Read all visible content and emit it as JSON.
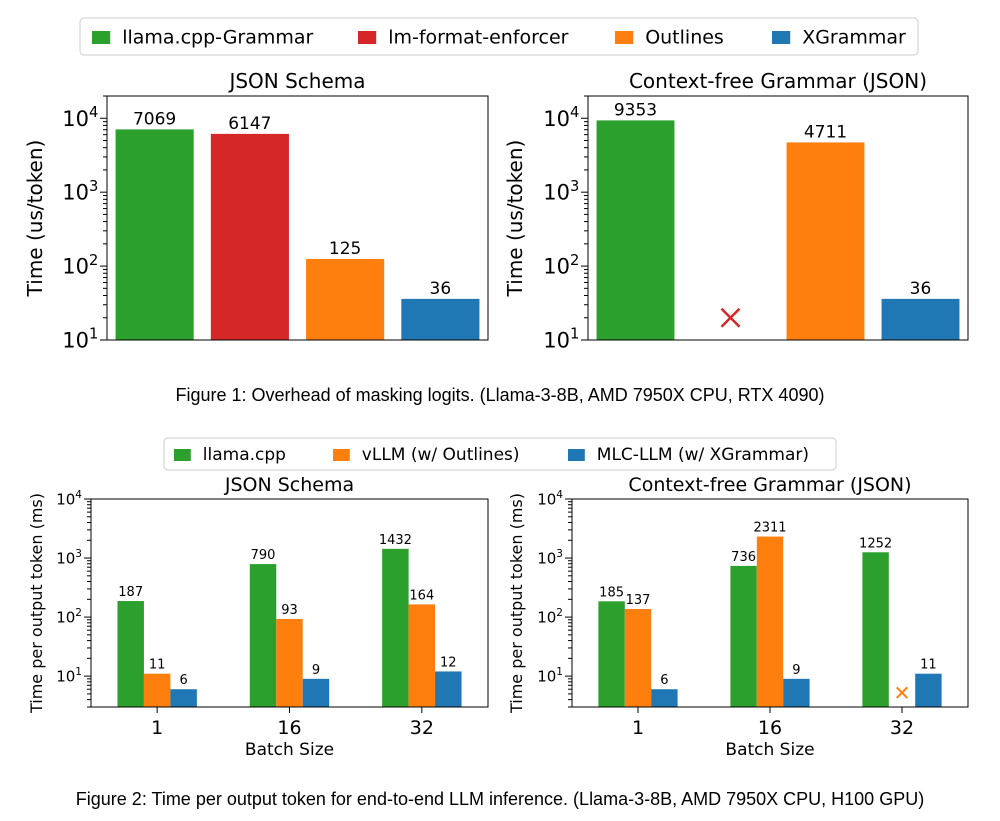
{
  "figure1": {
    "caption": "Figure 1: Overhead of masking logits. (Llama-3-8B, AMD 7950X CPU, RTX 4090)",
    "legend": [
      {
        "name": "llama.cpp-Grammar",
        "color": "#2ca02c"
      },
      {
        "name": "lm-format-enforcer",
        "color": "#d62728"
      },
      {
        "name": "Outlines",
        "color": "#ff7f0e"
      },
      {
        "name": "XGrammar",
        "color": "#1f77b4"
      }
    ]
  },
  "figure2": {
    "caption": "Figure 2: Time per output token for end-to-end LLM inference. (Llama-3-8B, AMD 7950X CPU, H100 GPU)",
    "legend": [
      {
        "name": "llama.cpp",
        "color": "#2ca02c"
      },
      {
        "name": "vLLM (w/ Outlines)",
        "color": "#ff7f0e"
      },
      {
        "name": "MLC-LLM (w/ XGrammar)",
        "color": "#1f77b4"
      }
    ]
  },
  "chart_data": [
    {
      "type": "bar",
      "title": "JSON Schema",
      "xlabel": "",
      "ylabel": "Time (us/token)",
      "yscale": "log",
      "ylim": [
        10,
        20000
      ],
      "yticks": [
        10,
        100,
        1000,
        10000
      ],
      "yticklabels": [
        "10^1",
        "10^2",
        "10^3",
        "10^4"
      ],
      "categories": [
        "llama.cpp-Grammar",
        "lm-format-enforcer",
        "Outlines",
        "XGrammar"
      ],
      "colors": [
        "#2ca02c",
        "#d62728",
        "#ff7f0e",
        "#1f77b4"
      ],
      "values": [
        7069,
        6147,
        125,
        36
      ],
      "labels": [
        "7069",
        "6147",
        "125",
        "36"
      ],
      "unsupported": [],
      "legend": "top (shared)"
    },
    {
      "type": "bar",
      "title": "Context-free Grammar (JSON)",
      "xlabel": "",
      "ylabel": "Time (us/token)",
      "yscale": "log",
      "ylim": [
        10,
        20000
      ],
      "yticks": [
        10,
        100,
        1000,
        10000
      ],
      "yticklabels": [
        "10^1",
        "10^2",
        "10^3",
        "10^4"
      ],
      "categories": [
        "llama.cpp-Grammar",
        "lm-format-enforcer",
        "Outlines",
        "XGrammar"
      ],
      "colors": [
        "#2ca02c",
        "#d62728",
        "#ff7f0e",
        "#1f77b4"
      ],
      "values": [
        9353,
        null,
        4711,
        36
      ],
      "labels": [
        "9353",
        "",
        "4711",
        "36"
      ],
      "unsupported": [
        1
      ],
      "legend": "top (shared)"
    },
    {
      "type": "bar",
      "title": "JSON Schema",
      "xlabel": "Batch Size",
      "ylabel": "Time per output token (ms)",
      "yscale": "log",
      "ylim": [
        3,
        10000
      ],
      "yticks": [
        10,
        100,
        1000,
        10000
      ],
      "yticklabels": [
        "10^1",
        "10^2",
        "10^3",
        "10^4"
      ],
      "categories": [
        "1",
        "16",
        "32"
      ],
      "series": [
        {
          "name": "llama.cpp",
          "color": "#2ca02c",
          "values": [
            187,
            790,
            1432
          ],
          "labels": [
            "187",
            "790",
            "1432"
          ]
        },
        {
          "name": "vLLM (w/ Outlines)",
          "color": "#ff7f0e",
          "values": [
            11,
            93,
            164
          ],
          "labels": [
            "11",
            "93",
            "164"
          ]
        },
        {
          "name": "MLC-LLM (w/ XGrammar)",
          "color": "#1f77b4",
          "values": [
            6,
            9,
            12
          ],
          "labels": [
            "6",
            "9",
            "12"
          ]
        }
      ],
      "legend": "top (shared)"
    },
    {
      "type": "bar",
      "title": "Context-free Grammar (JSON)",
      "xlabel": "Batch Size",
      "ylabel": "Time per output token (ms)",
      "yscale": "log",
      "ylim": [
        3,
        10000
      ],
      "yticks": [
        10,
        100,
        1000,
        10000
      ],
      "yticklabels": [
        "10^1",
        "10^2",
        "10^3",
        "10^4"
      ],
      "categories": [
        "1",
        "16",
        "32"
      ],
      "series": [
        {
          "name": "llama.cpp",
          "color": "#2ca02c",
          "values": [
            185,
            736,
            1252
          ],
          "labels": [
            "185",
            "736",
            "1252"
          ]
        },
        {
          "name": "vLLM (w/ Outlines)",
          "color": "#ff7f0e",
          "values": [
            137,
            2311,
            null
          ],
          "labels": [
            "137",
            "2311",
            ""
          ]
        },
        {
          "name": "MLC-LLM (w/ XGrammar)",
          "color": "#1f77b4",
          "values": [
            6,
            9,
            11
          ],
          "labels": [
            "6",
            "9",
            "11"
          ]
        }
      ],
      "legend": "top (shared)"
    }
  ]
}
